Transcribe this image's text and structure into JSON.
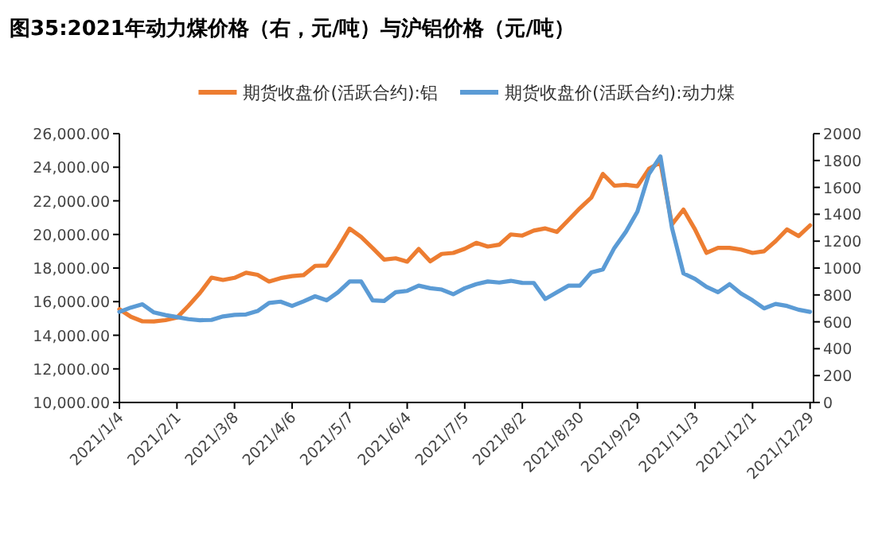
{
  "chart_data": {
    "type": "line",
    "title": "图35:2021年动力煤价格（右，元/吨）与沪铝价格（元/吨）",
    "categories": [
      "2021/1/4",
      null,
      null,
      null,
      null,
      "2021/2/1",
      null,
      null,
      null,
      null,
      "2021/3/8",
      null,
      null,
      null,
      null,
      "2021/4/6",
      null,
      null,
      null,
      null,
      "2021/5/7",
      null,
      null,
      null,
      null,
      "2021/6/4",
      null,
      null,
      null,
      null,
      "2021/7/5",
      null,
      null,
      null,
      null,
      "2021/8/2",
      null,
      null,
      null,
      null,
      "2021/8/30",
      null,
      null,
      null,
      null,
      "2021/9/29",
      null,
      null,
      null,
      null,
      "2021/11/3",
      null,
      null,
      null,
      null,
      "2021/12/1",
      null,
      null,
      null,
      null,
      "2021/12/29"
    ],
    "series": [
      {
        "name": "期货收盘价(活跃合约):铝",
        "color": "#ed7d31",
        "values": [
          15550,
          15100,
          14830,
          14820,
          14900,
          15050,
          15750,
          16520,
          17430,
          17290,
          17420,
          17720,
          17600,
          17200,
          17400,
          17520,
          17580,
          18130,
          18150,
          19200,
          20350,
          19850,
          19190,
          18500,
          18580,
          18380,
          19140,
          18400,
          18840,
          18900,
          19150,
          19500,
          19280,
          19390,
          20000,
          19930,
          20230,
          20360,
          20150,
          20850,
          21560,
          22200,
          23600,
          22900,
          22950,
          22870,
          23900,
          24300,
          20600,
          21480,
          20300,
          18900,
          19200,
          19200,
          19100,
          18900,
          19000,
          19600,
          20300,
          19900,
          20540
        ]
      },
      {
        "name": "期货收盘价(活跃合约):动力煤",
        "color": "#5b9bd5",
        "axis": "y2",
        "values": [
          674,
          706,
          730,
          670,
          650,
          635,
          620,
          612,
          614,
          640,
          652,
          655,
          680,
          740,
          750,
          718,
          752,
          790,
          760,
          820,
          900,
          900,
          760,
          755,
          820,
          830,
          869,
          850,
          840,
          805,
          850,
          880,
          900,
          892,
          905,
          890,
          889,
          770,
          820,
          869,
          869,
          967,
          990,
          1150,
          1270,
          1420,
          1700,
          1830,
          1300,
          960,
          920,
          860,
          820,
          880,
          811,
          760,
          700,
          733,
          718,
          690,
          674
        ]
      }
    ],
    "ylim": [
      10000,
      26000
    ],
    "yticks": [
      {
        "value": 10000,
        "label": "10,000.00"
      },
      {
        "value": 12000,
        "label": "12,000.00"
      },
      {
        "value": 14000,
        "label": "14,000.00"
      },
      {
        "value": 16000,
        "label": "16,000.00"
      },
      {
        "value": 18000,
        "label": "18,000.00"
      },
      {
        "value": 20000,
        "label": "20,000.00"
      },
      {
        "value": 22000,
        "label": "22,000.00"
      },
      {
        "value": 24000,
        "label": "24,000.00"
      },
      {
        "value": 26000,
        "label": "26,000.00"
      }
    ],
    "y2lim": [
      0,
      2000
    ],
    "y2ticks": [
      0,
      200,
      400,
      600,
      800,
      1000,
      1200,
      1400,
      1600,
      1800,
      2000
    ],
    "legend": "top"
  }
}
